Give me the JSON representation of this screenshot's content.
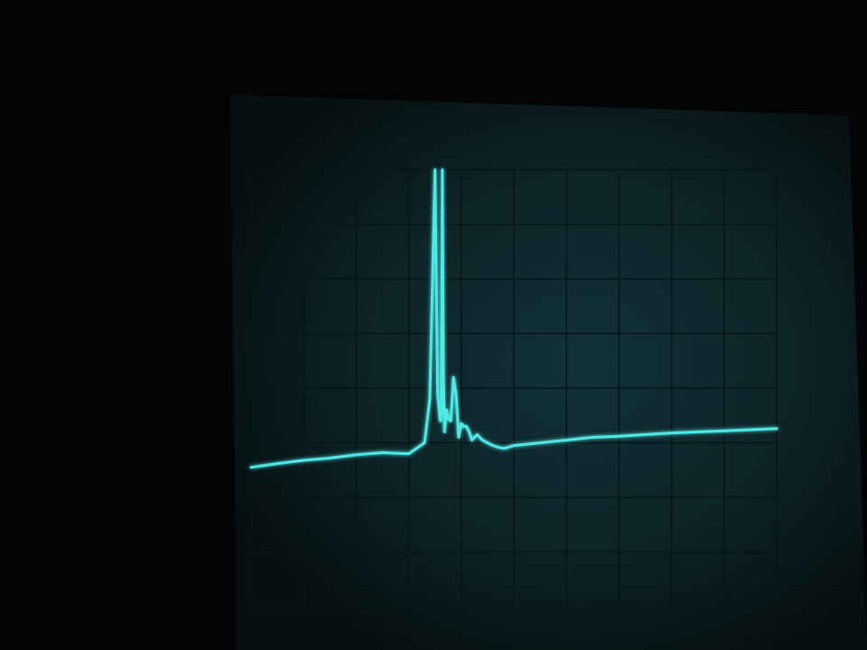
{
  "scene": {
    "subject": "oscilloscope-screen-photo",
    "trace_color": "#4fe8e6",
    "screen_color": "#0f2a2f",
    "graticule_color": "#06161a",
    "background_color": "#020405"
  },
  "chart_data": {
    "type": "line",
    "title": "",
    "xlabel": "",
    "ylabel": "",
    "grid": true,
    "x_divisions": 10,
    "y_divisions": 8,
    "xlim": [
      0,
      10
    ],
    "ylim": [
      0,
      8
    ],
    "series": [
      {
        "name": "trace",
        "x": [
          0.0,
          0.5,
          1.0,
          1.5,
          2.0,
          2.5,
          3.0,
          3.3,
          3.4,
          3.5,
          3.55,
          3.6,
          3.62,
          3.64,
          3.66,
          3.68,
          3.7,
          3.72,
          3.75,
          3.8,
          3.85,
          3.9,
          3.95,
          4.0,
          4.05,
          4.1,
          4.15,
          4.2,
          4.3,
          4.4,
          4.5,
          4.6,
          4.7,
          4.8,
          4.9,
          5.0,
          5.5,
          6.0,
          6.5,
          7.0,
          7.5,
          8.0,
          8.5,
          9.0,
          9.5,
          10.0
        ],
        "y": [
          2.55,
          2.62,
          2.68,
          2.72,
          2.78,
          2.82,
          2.8,
          3.0,
          3.8,
          8.0,
          3.9,
          3.4,
          3.6,
          8.0,
          4.2,
          3.2,
          3.4,
          3.6,
          3.45,
          3.4,
          4.2,
          3.9,
          3.1,
          3.35,
          3.3,
          3.3,
          3.2,
          3.05,
          3.15,
          3.05,
          3.0,
          2.95,
          2.92,
          2.9,
          2.92,
          2.95,
          3.0,
          3.05,
          3.1,
          3.12,
          3.15,
          3.18,
          3.2,
          3.22,
          3.24,
          3.26
        ]
      }
    ]
  }
}
